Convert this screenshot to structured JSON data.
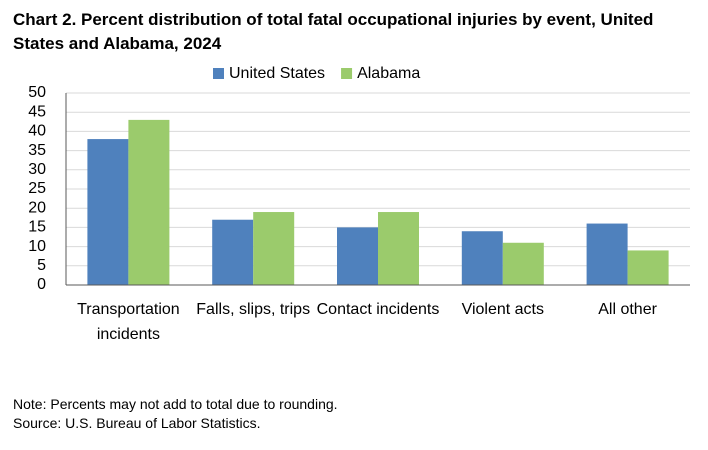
{
  "chart_data": {
    "type": "bar",
    "title": "Chart 2. Percent distribution of total fatal occupational injuries by event, United States and Alabama, 2024",
    "categories": [
      "Transportation incidents",
      "Falls, slips, trips",
      "Contact incidents",
      "Violent acts",
      "All other"
    ],
    "series": [
      {
        "name": "United States",
        "color": "#4f81bd",
        "values": [
          38,
          17,
          15,
          14,
          16
        ]
      },
      {
        "name": "Alabama",
        "color": "#9bcb6c",
        "values": [
          43,
          19,
          19,
          11,
          9
        ]
      }
    ],
    "ylim": [
      0,
      50
    ],
    "yticks": [
      0,
      5,
      10,
      15,
      20,
      25,
      30,
      35,
      40,
      45,
      50
    ],
    "grid": true,
    "legend": "top"
  },
  "notes": [
    "Note: Percents may not add to total due to rounding.",
    "Source: U.S. Bureau of Labor Statistics."
  ]
}
